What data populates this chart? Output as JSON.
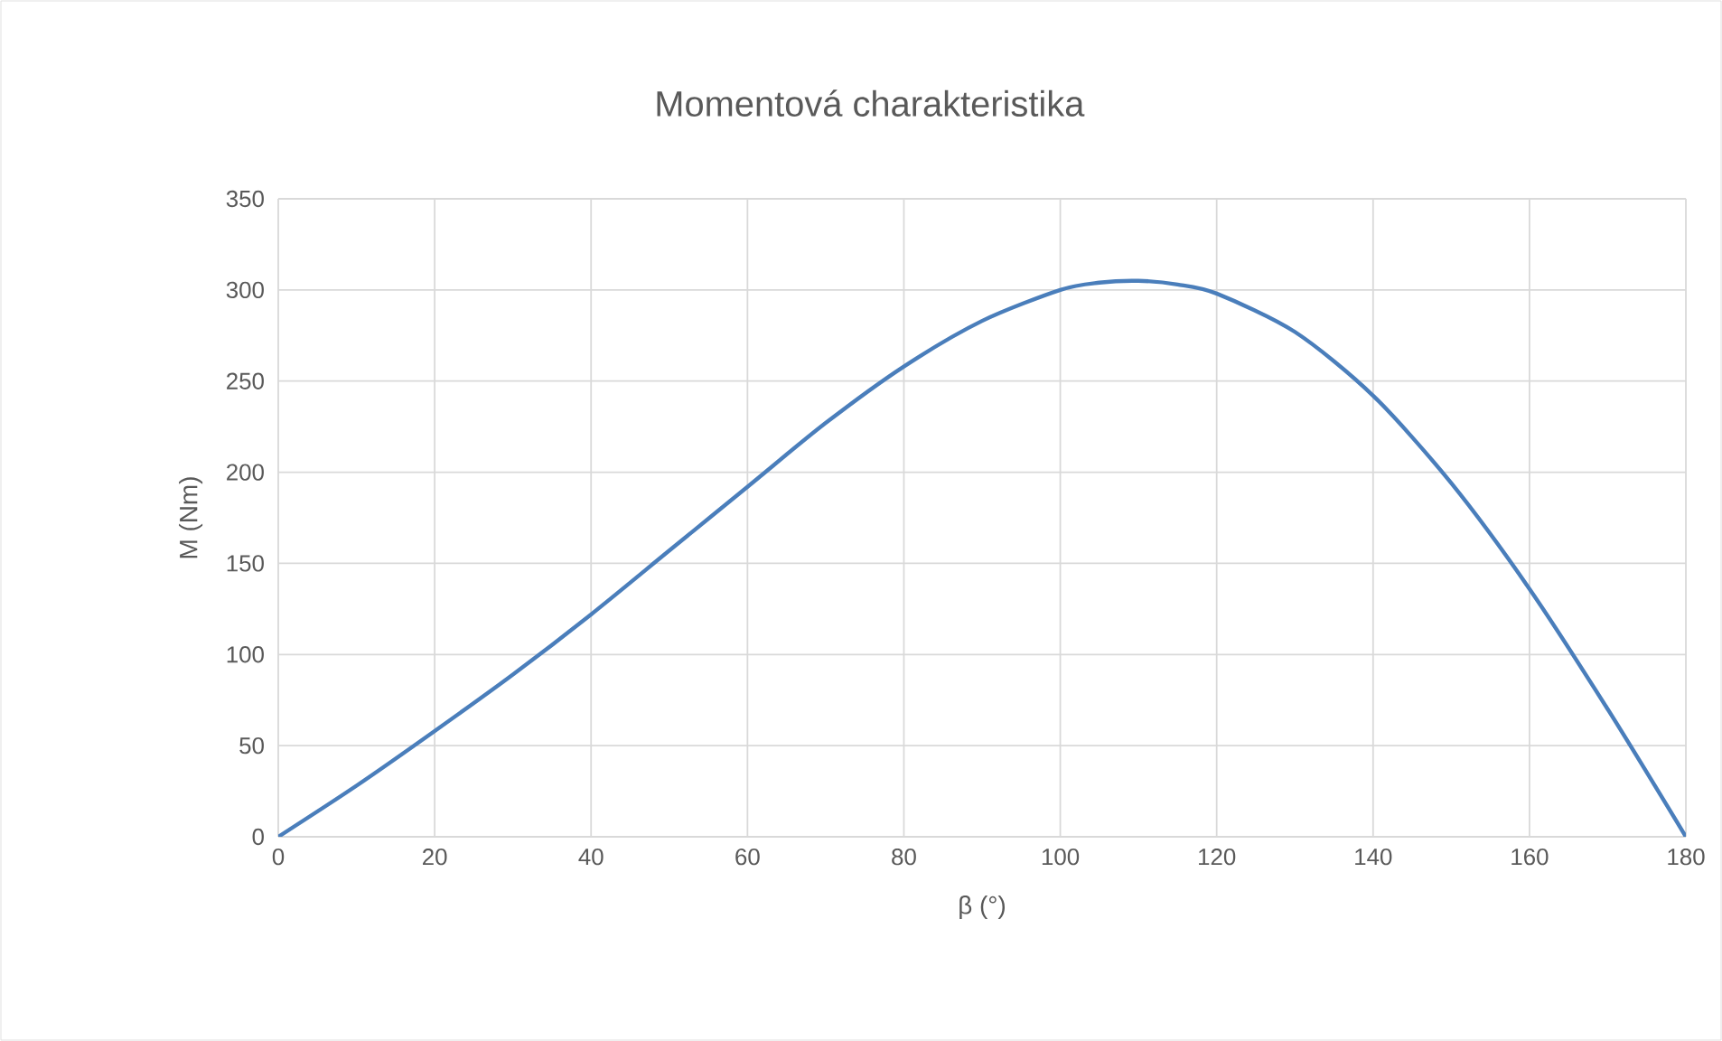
{
  "chart_data": {
    "type": "line",
    "title": "Momentová charakteristika",
    "xlabel": "β (°)",
    "ylabel": "M (Nm)",
    "x": [
      0,
      10,
      20,
      30,
      40,
      50,
      60,
      70,
      80,
      90,
      100,
      105,
      110,
      115,
      120,
      130,
      140,
      150,
      160,
      170,
      180
    ],
    "series": [
      {
        "color": "#4a7ebb",
        "values": [
          0,
          28,
          58,
          89,
          122,
          157,
          192,
          227,
          258,
          283,
          300,
          304,
          305,
          303,
          298,
          277,
          242,
          194,
          136,
          70,
          0
        ]
      }
    ],
    "xlim": [
      0,
      180
    ],
    "xticks": [
      0,
      20,
      40,
      60,
      80,
      100,
      120,
      140,
      160,
      180
    ],
    "ylim": [
      0,
      350
    ],
    "yticks": [
      0,
      50,
      100,
      150,
      200,
      250,
      300,
      350
    ],
    "grid": true,
    "marker": "none",
    "line_style": "solid"
  }
}
